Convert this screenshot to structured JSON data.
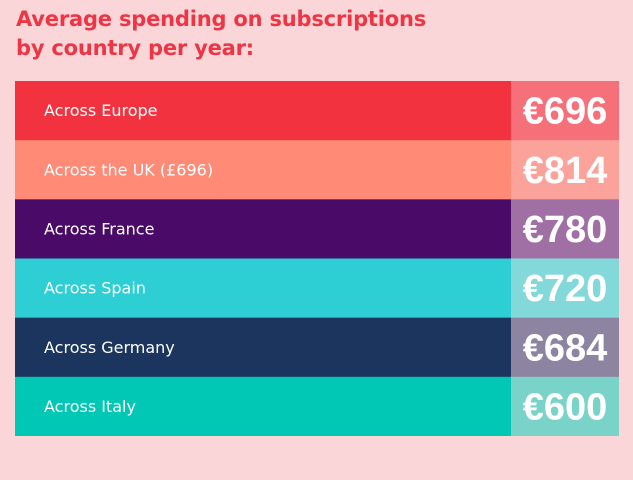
{
  "chart_data": {
    "type": "table",
    "title": "Average spending on subscriptions by country per year:",
    "currency": "€",
    "rows": [
      {
        "label": "Across Europe",
        "value": 696,
        "display": "€696",
        "row_color": "#f2333f",
        "value_color": "#f6707a"
      },
      {
        "label": "Across the UK (£696)",
        "value": 814,
        "display": "€814",
        "row_color": "#ff8a76",
        "value_color": "#fba39a"
      },
      {
        "label": "Across France",
        "value": 780,
        "display": "€780",
        "row_color": "#490a68",
        "value_color": "#a06fa4"
      },
      {
        "label": "Across Spain",
        "value": 720,
        "display": "€720",
        "row_color": "#2dcfd5",
        "value_color": "#83d8da"
      },
      {
        "label": "Across Germany",
        "value": 684,
        "display": "€684",
        "row_color": "#1b355e",
        "value_color": "#8c84a0"
      },
      {
        "label": "Across Italy",
        "value": 600,
        "display": "€600",
        "row_color": "#00c8b4",
        "value_color": "#7ad3c8"
      }
    ]
  }
}
